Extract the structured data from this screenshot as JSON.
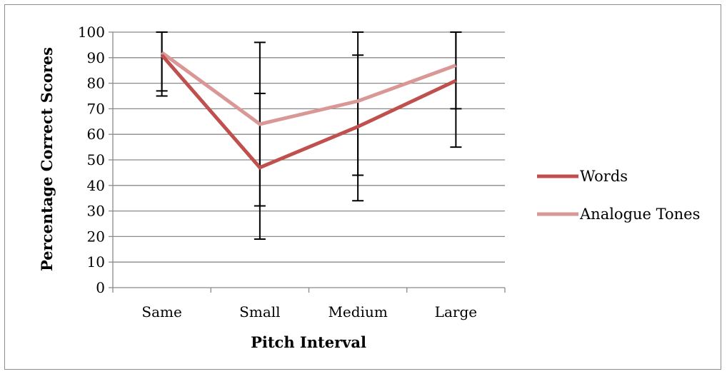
{
  "chart_data": {
    "type": "line",
    "xlabel": "Pitch Interval",
    "ylabel": "Percentage Correct Scores",
    "ylim": [
      0,
      100
    ],
    "yticks": [
      0,
      10,
      20,
      30,
      40,
      50,
      60,
      70,
      80,
      90,
      100
    ],
    "categories": [
      "Same",
      "Small",
      "Medium",
      "Large"
    ],
    "grid": true,
    "legend_position": "right",
    "series": [
      {
        "name": "Words",
        "color": "#c0504d",
        "values": [
          91,
          47,
          63,
          81
        ],
        "error_low": [
          77,
          19,
          34,
          55
        ],
        "error_high": [
          100,
          96,
          100,
          100
        ]
      },
      {
        "name": "Analogue Tones",
        "color": "#d99795",
        "values": [
          92,
          64,
          73,
          87
        ],
        "error_low": [
          75,
          32,
          44,
          70
        ],
        "error_high": [
          100,
          76,
          91,
          100
        ]
      }
    ],
    "error_bar_color": "#000000"
  }
}
